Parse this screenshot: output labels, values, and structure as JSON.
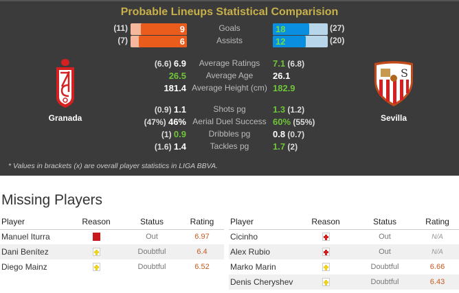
{
  "header": {
    "title": "Probable Lineups Statistical Comparision"
  },
  "teams": {
    "home": "Granada",
    "away": "Sevilla"
  },
  "bars": [
    {
      "label": "Goals",
      "home": "9",
      "home_total": "(11)",
      "home_value": 9,
      "home_overall": 11,
      "away": "18",
      "away_total": "(27)",
      "away_value": 18,
      "away_overall": 27
    },
    {
      "label": "Assists",
      "home": "6",
      "home_total": "(7)",
      "home_value": 6,
      "home_overall": 7,
      "away": "12",
      "away_total": "(20)",
      "away_value": 12,
      "away_overall": 20
    }
  ],
  "stats": [
    {
      "label": "Average Ratings",
      "home_paren": "(6.6)",
      "home": "6.9",
      "home_better": false,
      "away": "7.1",
      "away_paren": "(6.8)",
      "away_better": true
    },
    {
      "label": "Average Age",
      "home_paren": "",
      "home": "26.5",
      "home_better": true,
      "away": "26.1",
      "away_paren": "",
      "away_better": false
    },
    {
      "label": "Average Height (cm)",
      "home_paren": "",
      "home": "181.4",
      "home_better": false,
      "away": "182.9",
      "away_paren": "",
      "away_better": true
    },
    {
      "label": "Shots pg",
      "home_paren": "(0.9)",
      "home": "1.1",
      "home_better": false,
      "away": "1.3",
      "away_paren": "(1.2)",
      "away_better": true
    },
    {
      "label": "Aerial Duel Success",
      "home_paren": "(47%)",
      "home": "46%",
      "home_better": false,
      "away": "60%",
      "away_paren": "(55%)",
      "away_better": true
    },
    {
      "label": "Dribbles pg",
      "home_paren": "(1)",
      "home": "0.9",
      "home_better": true,
      "away": "0.8",
      "away_paren": "(0.7)",
      "away_better": false
    },
    {
      "label": "Tackles pg",
      "home_paren": "(1.6)",
      "home": "1.4",
      "home_better": false,
      "away": "1.7",
      "away_paren": "(2)",
      "away_better": true
    }
  ],
  "footnote": "* Values in brackets (x) are overall player statistics in LIGA BBVA.",
  "missing": {
    "title": "Missing Players",
    "columns": [
      "Player",
      "Reason",
      "Status",
      "Rating"
    ],
    "home": [
      {
        "player": "Manuel Iturra",
        "reason": "red-card-icon",
        "status": "Out",
        "rating": "6.97"
      },
      {
        "player": "Dani Benítez",
        "reason": "doubtful-injury-icon",
        "status": "Doubtful",
        "rating": "6.4"
      },
      {
        "player": "Diego Mainz",
        "reason": "doubtful-injury-icon",
        "status": "Doubtful",
        "rating": "6.52"
      }
    ],
    "away": [
      {
        "player": "Cicinho",
        "reason": "injury-icon",
        "status": "Out",
        "rating": "N/A"
      },
      {
        "player": "Alex Rubio",
        "reason": "injury-icon",
        "status": "Out",
        "rating": "N/A"
      },
      {
        "player": "Marko Marin",
        "reason": "doubtful-injury-icon",
        "status": "Doubtful",
        "rating": "6.66"
      },
      {
        "player": "Denis Cheryshev",
        "reason": "doubtful-injury-icon",
        "status": "Doubtful",
        "rating": "6.43"
      }
    ]
  },
  "colors": {
    "home_bar": "#ea5c1b",
    "away_bar": "#0a8ee0",
    "better": "#6fc43a",
    "title": "#c8b04a"
  }
}
